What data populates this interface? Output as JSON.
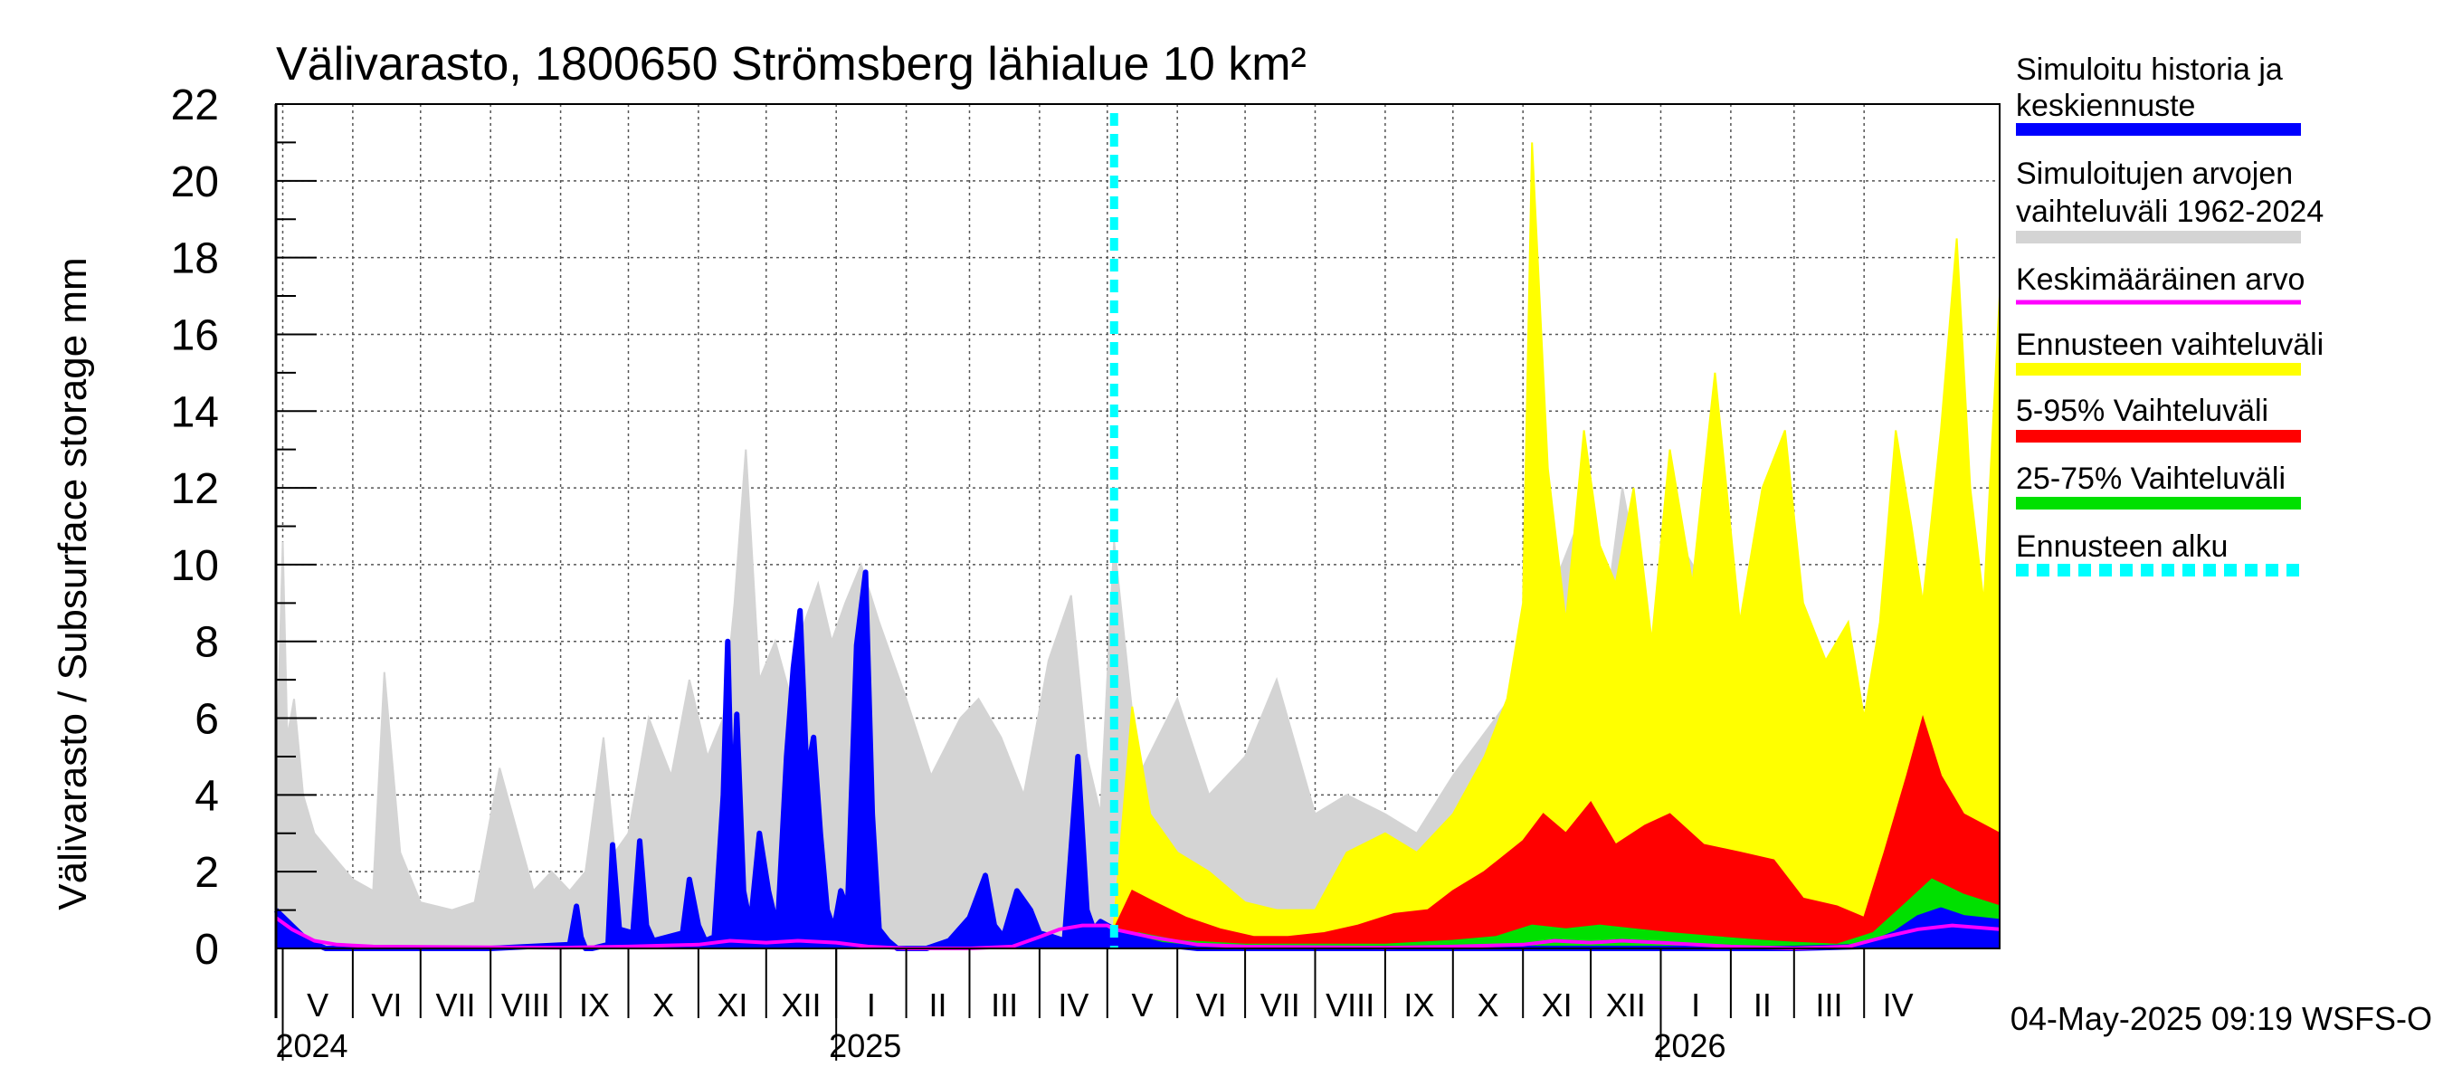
{
  "chart_data": {
    "type": "area",
    "title": "Välivarasto, 1800650 Strömsberg lähialue 10 km²",
    "ylabel": "Välivarasto / Subsurface storage  mm",
    "ylim": [
      0,
      22
    ],
    "yticks": [
      0,
      2,
      4,
      6,
      8,
      10,
      12,
      14,
      16,
      18,
      20,
      22
    ],
    "grid": true,
    "legend_placement": "right",
    "x_range": [
      "2024-04-28",
      "2026-05-31"
    ],
    "forecast_start": "2025-05-04",
    "footer": "04-May-2025 09:19 WSFS-O",
    "months": [
      {
        "label": "V",
        "start": "2024-05-01",
        "end": "2024-06-01"
      },
      {
        "label": "VI",
        "start": "2024-06-01",
        "end": "2024-07-01"
      },
      {
        "label": "VII",
        "start": "2024-07-01",
        "end": "2024-08-01"
      },
      {
        "label": "VIII",
        "start": "2024-08-01",
        "end": "2024-09-01"
      },
      {
        "label": "IX",
        "start": "2024-09-01",
        "end": "2024-10-01"
      },
      {
        "label": "X",
        "start": "2024-10-01",
        "end": "2024-11-01"
      },
      {
        "label": "XI",
        "start": "2024-11-01",
        "end": "2024-12-01"
      },
      {
        "label": "XII",
        "start": "2024-12-01",
        "end": "2025-01-01"
      },
      {
        "label": "I",
        "start": "2025-01-01",
        "end": "2025-02-01"
      },
      {
        "label": "II",
        "start": "2025-02-01",
        "end": "2025-03-01"
      },
      {
        "label": "III",
        "start": "2025-03-01",
        "end": "2025-04-01"
      },
      {
        "label": "IV",
        "start": "2025-04-01",
        "end": "2025-05-01"
      },
      {
        "label": "V",
        "start": "2025-05-01",
        "end": "2025-06-01"
      },
      {
        "label": "VI",
        "start": "2025-06-01",
        "end": "2025-07-01"
      },
      {
        "label": "VII",
        "start": "2025-07-01",
        "end": "2025-08-01"
      },
      {
        "label": "VIII",
        "start": "2025-08-01",
        "end": "2025-09-01"
      },
      {
        "label": "IX",
        "start": "2025-09-01",
        "end": "2025-10-01"
      },
      {
        "label": "X",
        "start": "2025-10-01",
        "end": "2025-11-01"
      },
      {
        "label": "XI",
        "start": "2025-11-01",
        "end": "2025-12-01"
      },
      {
        "label": "XII",
        "start": "2025-12-01",
        "end": "2026-01-01"
      },
      {
        "label": "I",
        "start": "2026-01-01",
        "end": "2026-02-01"
      },
      {
        "label": "II",
        "start": "2026-02-01",
        "end": "2026-03-01"
      },
      {
        "label": "III",
        "start": "2026-03-01",
        "end": "2026-04-01"
      },
      {
        "label": "IV",
        "start": "2026-04-01",
        "end": "2026-05-01"
      }
    ],
    "years": [
      {
        "label": "2024",
        "date": "2024-05-01"
      },
      {
        "label": "2025",
        "date": "2025-01-01"
      },
      {
        "label": "2026",
        "date": "2026-01-01"
      }
    ],
    "legend": [
      {
        "label": "Simuloitu historia ja keskiennuste",
        "color": "#0000ff",
        "style": "solid"
      },
      {
        "label": "Simuloitujen arvojen vaihteluväli 1962-2024",
        "color": "#d4d4d4",
        "style": "solid"
      },
      {
        "label": "Keskimääräinen arvo",
        "color": "#ff00ff",
        "style": "thin"
      },
      {
        "label": "Ennusteen vaihteluväli",
        "color": "#ffff00",
        "style": "solid"
      },
      {
        "label": "5-95% Vaihteluväli",
        "color": "#ff0000",
        "style": "solid"
      },
      {
        "label": "25-75% Vaihteluväli",
        "color": "#00e000",
        "style": "solid"
      },
      {
        "label": "Ennusteen alku",
        "color": "#00ffff",
        "style": "dashed"
      }
    ],
    "series": [
      {
        "name": "Simuloitujen arvojen vaihteluväli 1962-2024",
        "color": "#d4d4d4",
        "x": [
          "2024-04-28",
          "2024-05-01",
          "2024-05-03",
          "2024-05-06",
          "2024-05-10",
          "2024-05-15",
          "2024-05-22",
          "2024-06-01",
          "2024-06-10",
          "2024-06-15",
          "2024-06-22",
          "2024-07-01",
          "2024-07-15",
          "2024-07-25",
          "2024-08-05",
          "2024-08-20",
          "2024-08-28",
          "2024-09-05",
          "2024-09-12",
          "2024-09-20",
          "2024-09-25",
          "2024-10-01",
          "2024-10-10",
          "2024-10-20",
          "2024-10-28",
          "2024-11-05",
          "2024-11-12",
          "2024-11-17",
          "2024-11-22",
          "2024-11-28",
          "2024-12-05",
          "2024-12-12",
          "2024-12-18",
          "2024-12-24",
          "2024-12-30",
          "2025-01-05",
          "2025-01-12",
          "2025-01-20",
          "2025-02-01",
          "2025-02-12",
          "2025-02-25",
          "2025-03-05",
          "2025-03-15",
          "2025-03-25",
          "2025-04-05",
          "2025-04-15",
          "2025-04-22",
          "2025-04-28",
          "2025-05-04",
          "2025-05-15",
          "2025-06-01",
          "2025-06-15",
          "2025-07-01",
          "2025-07-15",
          "2025-08-01",
          "2025-08-15",
          "2025-09-01",
          "2025-09-15",
          "2025-10-01",
          "2025-10-20",
          "2025-11-01",
          "2025-11-15",
          "2025-11-25",
          "2025-12-05",
          "2025-12-15",
          "2025-12-28",
          "2026-01-10",
          "2026-01-25",
          "2026-02-10",
          "2026-02-25",
          "2026-03-05",
          "2026-03-20",
          "2026-04-01",
          "2026-04-10",
          "2026-04-20",
          "2026-04-25",
          "2026-05-05",
          "2026-05-15",
          "2026-05-31"
        ],
        "values": [
          4.0,
          10.6,
          5.5,
          6.5,
          4.0,
          3.0,
          2.5,
          1.8,
          1.5,
          7.2,
          2.5,
          1.2,
          1.0,
          1.2,
          4.7,
          1.5,
          2.0,
          1.5,
          2.0,
          5.5,
          2.5,
          3.0,
          6.0,
          4.5,
          7.0,
          5.0,
          6.0,
          9.0,
          13.0,
          7.0,
          8.0,
          6.5,
          8.5,
          9.5,
          8.0,
          9.0,
          10.0,
          8.5,
          6.5,
          4.5,
          6.0,
          6.5,
          5.5,
          4.0,
          7.5,
          9.2,
          5.0,
          3.5,
          10.6,
          4.5,
          6.5,
          4.0,
          5.0,
          7.0,
          3.5,
          4.0,
          3.5,
          3.0,
          4.5,
          6.0,
          7.0,
          9.5,
          11.0,
          7.5,
          12.0,
          8.0,
          10.5,
          9.0,
          7.0,
          8.0,
          5.5,
          4.5,
          4.0,
          7.0,
          9.5,
          8.0,
          7.5,
          6.0,
          7.0
        ]
      },
      {
        "name": "Ennusteen vaihteluväli",
        "color": "#ffff00",
        "x": [
          "2025-05-04",
          "2025-05-12",
          "2025-05-20",
          "2025-06-01",
          "2025-06-15",
          "2025-07-01",
          "2025-07-15",
          "2025-08-01",
          "2025-08-15",
          "2025-09-01",
          "2025-09-15",
          "2025-10-01",
          "2025-10-15",
          "2025-10-25",
          "2025-11-01",
          "2025-11-05",
          "2025-11-12",
          "2025-11-20",
          "2025-11-28",
          "2025-12-05",
          "2025-12-12",
          "2025-12-20",
          "2025-12-28",
          "2026-01-05",
          "2026-01-15",
          "2026-01-25",
          "2026-02-05",
          "2026-02-15",
          "2026-02-25",
          "2026-03-05",
          "2026-03-15",
          "2026-03-25",
          "2026-04-01",
          "2026-04-08",
          "2026-04-15",
          "2026-04-22",
          "2026-04-27",
          "2026-05-05",
          "2026-05-12",
          "2026-05-18",
          "2026-05-24",
          "2026-05-31"
        ],
        "values": [
          0.7,
          6.3,
          3.5,
          2.5,
          2.0,
          1.2,
          1.0,
          1.0,
          2.5,
          3.0,
          2.5,
          3.5,
          5.0,
          6.5,
          9.0,
          21.0,
          12.5,
          8.5,
          13.5,
          10.5,
          9.5,
          12.0,
          8.0,
          13.0,
          9.5,
          15.0,
          8.5,
          12.0,
          13.5,
          9.0,
          7.5,
          8.5,
          6.0,
          8.5,
          13.5,
          11.0,
          9.0,
          13.5,
          18.5,
          12.0,
          9.0,
          17.0
        ]
      },
      {
        "name": "5-95% Vaihteluväli",
        "color": "#ff0000",
        "x": [
          "2025-05-04",
          "2025-05-12",
          "2025-05-22",
          "2025-06-05",
          "2025-06-20",
          "2025-07-05",
          "2025-07-20",
          "2025-08-05",
          "2025-08-20",
          "2025-09-05",
          "2025-09-20",
          "2025-10-01",
          "2025-10-15",
          "2025-11-01",
          "2025-11-10",
          "2025-11-20",
          "2025-12-01",
          "2025-12-12",
          "2025-12-25",
          "2026-01-05",
          "2026-01-20",
          "2026-02-05",
          "2026-02-20",
          "2026-03-05",
          "2026-03-20",
          "2026-04-01",
          "2026-04-10",
          "2026-04-20",
          "2026-04-27",
          "2026-05-05",
          "2026-05-15",
          "2026-05-31"
        ],
        "values": [
          0.5,
          1.5,
          1.2,
          0.8,
          0.5,
          0.3,
          0.3,
          0.4,
          0.6,
          0.9,
          1.0,
          1.5,
          2.0,
          2.8,
          3.5,
          3.0,
          3.8,
          2.7,
          3.2,
          3.5,
          2.7,
          2.5,
          2.3,
          1.3,
          1.1,
          0.8,
          2.5,
          4.5,
          6.0,
          4.5,
          3.5,
          3.0
        ]
      },
      {
        "name": "25-75% Vaihteluväli",
        "color": "#00e000",
        "x": [
          "2025-05-04",
          "2025-05-15",
          "2025-06-01",
          "2025-07-01",
          "2025-08-01",
          "2025-09-01",
          "2025-10-01",
          "2025-10-20",
          "2025-11-05",
          "2025-11-20",
          "2025-12-05",
          "2025-12-20",
          "2026-01-05",
          "2026-01-25",
          "2026-02-15",
          "2026-03-01",
          "2026-03-20",
          "2026-04-05",
          "2026-04-20",
          "2026-05-01",
          "2026-05-15",
          "2026-05-31"
        ],
        "values": [
          0.3,
          0.4,
          0.2,
          0.1,
          0.1,
          0.1,
          0.2,
          0.3,
          0.6,
          0.5,
          0.6,
          0.5,
          0.4,
          0.3,
          0.2,
          0.15,
          0.1,
          0.4,
          1.2,
          1.8,
          1.4,
          1.1
        ]
      },
      {
        "name": "Simuloitu historia ja keskiennuste",
        "color": "#0000ff",
        "x": [
          "2024-04-28",
          "2024-05-05",
          "2024-05-12",
          "2024-05-20",
          "2024-06-01",
          "2024-08-01",
          "2024-09-05",
          "2024-09-08",
          "2024-09-10",
          "2024-09-12",
          "2024-09-15",
          "2024-09-22",
          "2024-09-24",
          "2024-09-27",
          "2024-10-03",
          "2024-10-06",
          "2024-10-09",
          "2024-10-12",
          "2024-10-25",
          "2024-10-28",
          "2024-11-01",
          "2024-11-04",
          "2024-11-08",
          "2024-11-12",
          "2024-11-14",
          "2024-11-16",
          "2024-11-18",
          "2024-11-21",
          "2024-11-24",
          "2024-11-28",
          "2024-12-02",
          "2024-12-06",
          "2024-12-10",
          "2024-12-13",
          "2024-12-16",
          "2024-12-19",
          "2024-12-22",
          "2024-12-25",
          "2024-12-28",
          "2024-12-31",
          "2025-01-03",
          "2025-01-06",
          "2025-01-10",
          "2025-01-14",
          "2025-01-17",
          "2025-01-20",
          "2025-01-24",
          "2025-01-28",
          "2025-02-02",
          "2025-02-06",
          "2025-02-10",
          "2025-02-20",
          "2025-03-01",
          "2025-03-08",
          "2025-03-12",
          "2025-03-16",
          "2025-03-22",
          "2025-03-28",
          "2025-04-01",
          "2025-04-07",
          "2025-04-12",
          "2025-04-18",
          "2025-04-22",
          "2025-04-25",
          "2025-04-28",
          "2025-05-04",
          "2025-05-12",
          "2025-05-25",
          "2025-06-10",
          "2025-07-01",
          "2025-08-01",
          "2025-09-01",
          "2025-10-01",
          "2025-11-01",
          "2025-12-01",
          "2026-01-01",
          "2026-02-01",
          "2026-03-01",
          "2026-04-01",
          "2026-04-15",
          "2026-04-25",
          "2026-05-05",
          "2026-05-15",
          "2026-05-31"
        ],
        "values": [
          1.0,
          0.6,
          0.2,
          0.0,
          0.0,
          0.0,
          0.1,
          1.1,
          0.3,
          0.0,
          0.0,
          0.1,
          2.7,
          0.5,
          0.4,
          2.8,
          0.6,
          0.2,
          0.4,
          1.8,
          0.6,
          0.2,
          0.3,
          4.0,
          8.0,
          3.0,
          6.1,
          1.5,
          0.6,
          3.0,
          1.5,
          0.5,
          5.0,
          7.3,
          8.8,
          4.5,
          5.5,
          3.0,
          1.0,
          0.5,
          1.5,
          1.0,
          7.9,
          9.8,
          3.5,
          0.5,
          0.2,
          0.0,
          0.0,
          0.0,
          0.0,
          0.2,
          0.8,
          1.9,
          0.6,
          0.3,
          1.5,
          1.0,
          0.4,
          0.3,
          0.2,
          5.0,
          1.0,
          0.5,
          0.7,
          0.5,
          0.3,
          0.1,
          0.0,
          0.0,
          0.0,
          0.0,
          0.0,
          0.0,
          0.0,
          0.0,
          0.0,
          0.0,
          0.05,
          0.4,
          0.8,
          1.0,
          0.8,
          0.7
        ]
      },
      {
        "name": "Keskimääräinen arvo",
        "color": "#ff00ff",
        "x": [
          "2024-04-28",
          "2024-05-05",
          "2024-05-15",
          "2024-05-25",
          "2024-06-10",
          "2024-09-01",
          "2024-10-01",
          "2024-11-01",
          "2024-11-15",
          "2024-12-01",
          "2024-12-15",
          "2025-01-01",
          "2025-01-15",
          "2025-02-01",
          "2025-03-01",
          "2025-03-20",
          "2025-04-01",
          "2025-04-10",
          "2025-04-20",
          "2025-05-01",
          "2025-05-04",
          "2025-05-20",
          "2025-06-10",
          "2025-07-01",
          "2025-09-01",
          "2025-10-01",
          "2025-11-01",
          "2025-11-15",
          "2025-12-01",
          "2025-12-15",
          "2026-01-01",
          "2026-02-01",
          "2026-03-01",
          "2026-03-25",
          "2026-04-10",
          "2026-04-25",
          "2026-05-10",
          "2026-05-31"
        ],
        "values": [
          0.8,
          0.5,
          0.2,
          0.1,
          0.05,
          0.02,
          0.05,
          0.1,
          0.2,
          0.15,
          0.2,
          0.15,
          0.05,
          0.0,
          0.0,
          0.05,
          0.3,
          0.5,
          0.6,
          0.6,
          0.5,
          0.3,
          0.1,
          0.05,
          0.02,
          0.05,
          0.1,
          0.2,
          0.15,
          0.2,
          0.15,
          0.05,
          0.0,
          0.05,
          0.3,
          0.5,
          0.6,
          0.5
        ]
      }
    ]
  }
}
